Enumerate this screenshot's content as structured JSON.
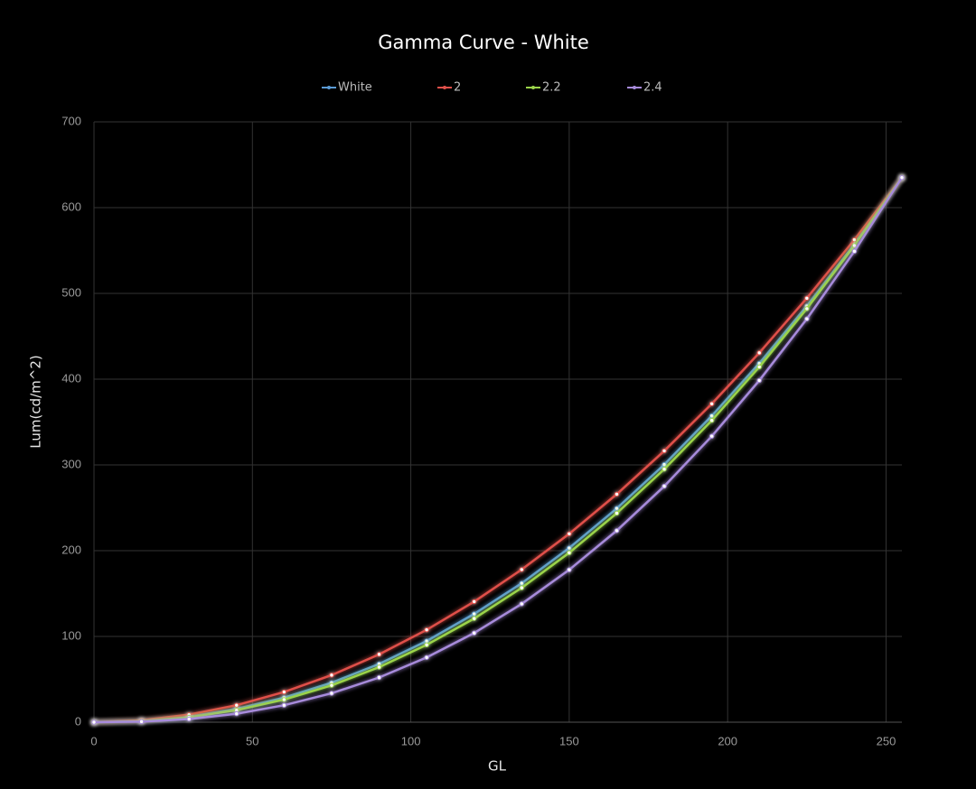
{
  "chart_data": {
    "type": "line",
    "title": "Gamma Curve - White",
    "x_label": "GL",
    "y_label": "Lum(cd/m^2)",
    "x": [
      0,
      15,
      30,
      45,
      60,
      75,
      90,
      105,
      120,
      135,
      150,
      165,
      180,
      195,
      210,
      225,
      240,
      255
    ],
    "series": [
      {
        "name": "White",
        "color": "#5b9bd5",
        "values": [
          0,
          1.5,
          6.5,
          15.5,
          28.6,
          46.0,
          67.9,
          94.6,
          126.3,
          162.0,
          203.1,
          249.3,
          300.4,
          357.2,
          418.4,
          485.3,
          557.5,
          635
        ]
      },
      {
        "name": "2",
        "color": "#e0504a",
        "values": [
          0,
          2.2,
          8.8,
          19.8,
          35.2,
          54.9,
          79.1,
          107.7,
          140.6,
          178.0,
          219.7,
          265.9,
          316.4,
          371.3,
          430.7,
          494.4,
          562.5,
          635
        ]
      },
      {
        "name": "2.2",
        "color": "#9bd44a",
        "values": [
          0,
          1.2,
          5.7,
          14.0,
          26.4,
          43.0,
          64.2,
          90.2,
          120.9,
          156.7,
          197.6,
          243.7,
          295.1,
          351.9,
          414.3,
          482.2,
          555.8,
          635
        ]
      },
      {
        "name": "2.4",
        "color": "#a78bdb",
        "values": [
          0,
          0.7,
          3.7,
          9.9,
          19.8,
          33.7,
          52.1,
          75.5,
          104.0,
          138.0,
          177.7,
          223.4,
          275.2,
          333.5,
          398.5,
          470.3,
          549.1,
          635
        ]
      }
    ],
    "xlim": [
      0,
      255
    ],
    "xticks": [
      0,
      50,
      100,
      150,
      200,
      250
    ],
    "ylim": [
      0,
      700
    ],
    "yticks": [
      0,
      100,
      200,
      300,
      400,
      500,
      600,
      700
    ],
    "grid": true
  }
}
